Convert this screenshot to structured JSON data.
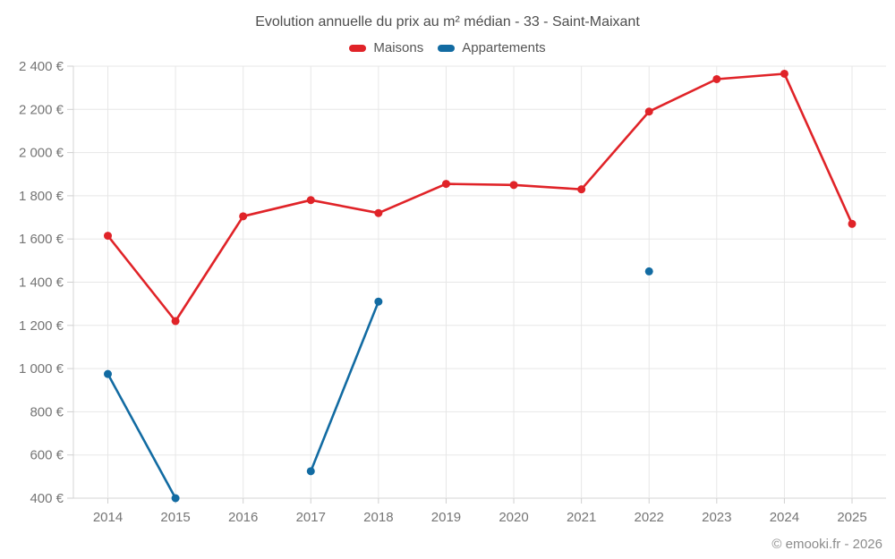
{
  "title": "Evolution annuelle du prix au m² médian - 33 - Saint-Maixant",
  "footer": "© emooki.fr - 2026",
  "legend": {
    "items": [
      {
        "label": "Maisons",
        "color": "#e02328"
      },
      {
        "label": "Appartements",
        "color": "#126ba2"
      }
    ]
  },
  "colors": {
    "grid": "#e7e7e7",
    "axis": "#d4d4d4",
    "tick": "#cfcfcf",
    "tick_label": "#757575",
    "title": "#4d4d4d",
    "footer": "#8c8c8c"
  },
  "chart_data": {
    "type": "line",
    "title": "Evolution annuelle du prix au m² médian - 33 - Saint-Maixant",
    "x": [
      2014,
      2015,
      2016,
      2017,
      2018,
      2019,
      2020,
      2021,
      2022,
      2023,
      2024,
      2025
    ],
    "series": [
      {
        "name": "Maisons",
        "color": "#e02328",
        "values": [
          1615,
          1220,
          1705,
          1780,
          1720,
          1855,
          1850,
          1830,
          2190,
          2340,
          2365,
          1670
        ]
      },
      {
        "name": "Appartements",
        "color": "#126ba2",
        "values": [
          975,
          400,
          null,
          525,
          1310,
          null,
          null,
          null,
          1450,
          null,
          null,
          null
        ]
      }
    ],
    "ylim": [
      400,
      2400
    ],
    "ytick_step": 200,
    "ytick_suffix": " €",
    "grid": true,
    "legend_position": "top",
    "xlabel": "",
    "ylabel": ""
  }
}
